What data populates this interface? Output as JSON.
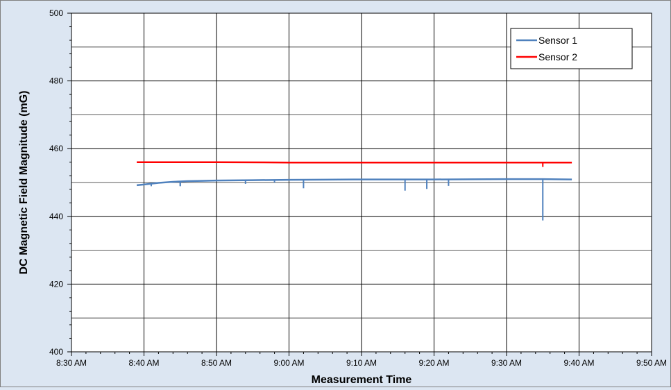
{
  "chart_data": {
    "type": "line",
    "title": "",
    "xlabel": "Measurement Time",
    "ylabel": "DC Magnetic Field Magnitude (mG)",
    "xlim": [
      "8:30 AM",
      "9:50 AM"
    ],
    "ylim": [
      400,
      500
    ],
    "x_ticks": [
      "8:30 AM",
      "8:40 AM",
      "8:50 AM",
      "9:00 AM",
      "9:10 AM",
      "9:20 AM",
      "9:30 AM",
      "9:40 AM",
      "9:50 AM"
    ],
    "y_ticks": [
      400,
      420,
      440,
      460,
      480,
      500
    ],
    "grid": true,
    "legend_position": "top-right",
    "series": [
      {
        "name": "Sensor 1",
        "color": "#4f81bd",
        "x": [
          "8:39 AM",
          "8:40 AM",
          "8:42 AM",
          "8:44 AM",
          "8:46 AM",
          "8:48 AM",
          "8:50 AM",
          "8:55 AM",
          "9:00 AM",
          "9:05 AM",
          "9:10 AM",
          "9:15 AM",
          "9:20 AM",
          "9:25 AM",
          "9:30 AM",
          "9:35 AM",
          "9:39 AM"
        ],
        "y": [
          449.2,
          449.4,
          449.9,
          450.2,
          450.4,
          450.5,
          450.6,
          450.7,
          450.8,
          450.85,
          450.9,
          450.9,
          450.9,
          450.95,
          451.0,
          451.0,
          450.9
        ],
        "dips": [
          {
            "x": "8:41 AM",
            "y": 448.9
          },
          {
            "x": "8:45 AM",
            "y": 449.0
          },
          {
            "x": "8:45 AM",
            "y": 448.9
          },
          {
            "x": "8:54 AM",
            "y": 449.6
          },
          {
            "x": "8:58 AM",
            "y": 450.0
          },
          {
            "x": "9:02 AM",
            "y": 448.3
          },
          {
            "x": "9:16 AM",
            "y": 447.6
          },
          {
            "x": "9:19 AM",
            "y": 448.1
          },
          {
            "x": "9:22 AM",
            "y": 449.0
          },
          {
            "x": "9:35 AM",
            "y": 438.8
          }
        ]
      },
      {
        "name": "Sensor 2",
        "color": "#ff0000",
        "x": [
          "8:39 AM",
          "8:50 AM",
          "9:00 AM",
          "9:10 AM",
          "9:20 AM",
          "9:30 AM",
          "9:39 AM"
        ],
        "y": [
          456.0,
          456.0,
          455.9,
          455.9,
          455.9,
          455.9,
          455.9
        ],
        "dips": [
          {
            "x": "9:35 AM",
            "y": 454.6
          }
        ]
      }
    ]
  }
}
